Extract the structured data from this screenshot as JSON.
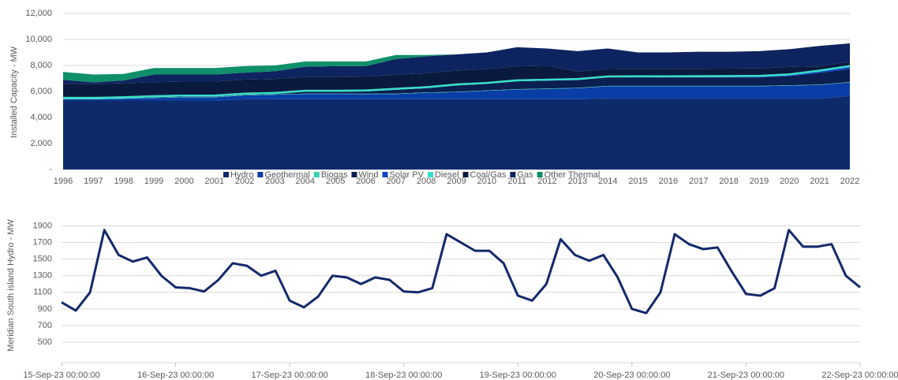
{
  "chart_data": [
    {
      "type": "stacked_area",
      "y_label": "Installed Capacity - MW",
      "x": [
        1996,
        1997,
        1998,
        1999,
        2000,
        2001,
        2002,
        2003,
        2004,
        2005,
        2006,
        2007,
        2008,
        2009,
        2010,
        2011,
        2012,
        2013,
        2014,
        2015,
        2016,
        2017,
        2018,
        2019,
        2020,
        2021,
        2022
      ],
      "xlim": [
        1996,
        2022
      ],
      "ylim": [
        0,
        12000
      ],
      "yticks": [
        {
          "value": 0,
          "label": "-"
        },
        {
          "value": 2000,
          "label": "2,000"
        },
        {
          "value": 4000,
          "label": "4,000"
        },
        {
          "value": 6000,
          "label": "6,000"
        },
        {
          "value": 8000,
          "label": "8,000"
        },
        {
          "value": 10000,
          "label": "10,000"
        },
        {
          "value": 12000,
          "label": "12,000"
        }
      ],
      "grid": true,
      "legend": "bottom",
      "series": [
        {
          "name": "Hydro",
          "color": "#0d2a6b",
          "values": [
            5300,
            5300,
            5300,
            5300,
            5300,
            5300,
            5400,
            5400,
            5400,
            5400,
            5400,
            5400,
            5400,
            5400,
            5400,
            5400,
            5400,
            5400,
            5450,
            5450,
            5450,
            5450,
            5450,
            5450,
            5450,
            5450,
            5650
          ]
        },
        {
          "name": "Geothermal",
          "color": "#0a3ea6",
          "values": [
            100,
            100,
            150,
            200,
            250,
            250,
            300,
            350,
            400,
            400,
            400,
            400,
            500,
            550,
            650,
            750,
            800,
            850,
            950,
            950,
            950,
            950,
            950,
            950,
            1000,
            1050,
            1050
          ]
        },
        {
          "name": "Biogas",
          "color": "#39d3b0",
          "values": [
            30,
            30,
            30,
            30,
            30,
            30,
            30,
            30,
            30,
            30,
            30,
            30,
            30,
            30,
            30,
            30,
            30,
            30,
            30,
            30,
            30,
            30,
            30,
            30,
            30,
            30,
            30
          ]
        },
        {
          "name": "Wind",
          "color": "#0b1f50",
          "values": [
            0,
            0,
            0,
            30,
            30,
            30,
            30,
            30,
            150,
            150,
            170,
            300,
            320,
            480,
            500,
            600,
            600,
            600,
            650,
            650,
            650,
            650,
            650,
            650,
            700,
            900,
            1000
          ]
        },
        {
          "name": "Solar PV",
          "color": "#0b44c4",
          "values": [
            0,
            0,
            0,
            0,
            0,
            0,
            0,
            0,
            0,
            0,
            0,
            0,
            0,
            0,
            0,
            0,
            0,
            0,
            0,
            10,
            15,
            20,
            30,
            40,
            60,
            100,
            150
          ]
        },
        {
          "name": "Diesel",
          "color": "#32e0c8",
          "values": [
            150,
            150,
            150,
            150,
            150,
            150,
            150,
            150,
            150,
            150,
            150,
            150,
            150,
            150,
            150,
            150,
            150,
            150,
            150,
            150,
            150,
            150,
            150,
            150,
            150,
            150,
            150
          ]
        },
        {
          "name": "Coal/Gas",
          "color": "#0a1a3e",
          "values": [
            1000,
            1000,
            1000,
            1000,
            1000,
            1000,
            1000,
            1000,
            1000,
            1000,
            1000,
            1000,
            1000,
            1000,
            1000,
            1000,
            1000,
            500,
            500,
            500,
            500,
            500,
            500,
            500,
            500,
            250,
            250
          ]
        },
        {
          "name": "Gas",
          "color": "#0e2460",
          "values": [
            320,
            120,
            220,
            590,
            540,
            540,
            540,
            590,
            770,
            820,
            800,
            1220,
            1300,
            1240,
            1270,
            1470,
            1320,
            1570,
            1570,
            1260,
            1255,
            1300,
            1290,
            1330,
            1360,
            1570,
            1420
          ]
        },
        {
          "name": "Other Thermal",
          "color": "#0f8f6a",
          "values": [
            600,
            600,
            500,
            500,
            500,
            500,
            500,
            450,
            400,
            350,
            350,
            300,
            100,
            0,
            0,
            0,
            0,
            0,
            0,
            0,
            0,
            0,
            0,
            0,
            0,
            0,
            0
          ]
        }
      ]
    },
    {
      "type": "line",
      "y_label": "Meridian South island Hydro - MW",
      "x": [
        "15-Sep-23 00:00:00",
        "15-Sep-23 03:00:00",
        "15-Sep-23 06:00:00",
        "15-Sep-23 09:00:00",
        "15-Sep-23 12:00:00",
        "15-Sep-23 15:00:00",
        "15-Sep-23 18:00:00",
        "15-Sep-23 21:00:00",
        "16-Sep-23 00:00:00",
        "16-Sep-23 03:00:00",
        "16-Sep-23 06:00:00",
        "16-Sep-23 09:00:00",
        "16-Sep-23 12:00:00",
        "16-Sep-23 15:00:00",
        "16-Sep-23 18:00:00",
        "16-Sep-23 21:00:00",
        "17-Sep-23 00:00:00",
        "17-Sep-23 03:00:00",
        "17-Sep-23 06:00:00",
        "17-Sep-23 09:00:00",
        "17-Sep-23 12:00:00",
        "17-Sep-23 15:00:00",
        "17-Sep-23 18:00:00",
        "17-Sep-23 21:00:00",
        "18-Sep-23 00:00:00",
        "18-Sep-23 03:00:00",
        "18-Sep-23 06:00:00",
        "18-Sep-23 09:00:00",
        "18-Sep-23 12:00:00",
        "18-Sep-23 15:00:00",
        "18-Sep-23 18:00:00",
        "18-Sep-23 21:00:00",
        "19-Sep-23 00:00:00",
        "19-Sep-23 03:00:00",
        "19-Sep-23 06:00:00",
        "19-Sep-23 09:00:00",
        "19-Sep-23 12:00:00",
        "19-Sep-23 15:00:00",
        "19-Sep-23 18:00:00",
        "19-Sep-23 21:00:00",
        "20-Sep-23 00:00:00",
        "20-Sep-23 03:00:00",
        "20-Sep-23 06:00:00",
        "20-Sep-23 09:00:00",
        "20-Sep-23 12:00:00",
        "20-Sep-23 15:00:00",
        "20-Sep-23 18:00:00",
        "20-Sep-23 21:00:00",
        "21-Sep-23 00:00:00",
        "21-Sep-23 03:00:00",
        "21-Sep-23 06:00:00",
        "21-Sep-23 09:00:00",
        "21-Sep-23 12:00:00",
        "21-Sep-23 15:00:00",
        "21-Sep-23 18:00:00",
        "21-Sep-23 21:00:00",
        "22-Sep-23 00:00:00"
      ],
      "xlim": [
        "15-Sep-23 00:00:00",
        "22-Sep-23 00:00:00"
      ],
      "xticks": [
        "15-Sep-23 00:00:00",
        "16-Sep-23 00:00:00",
        "17-Sep-23 00:00:00",
        "18-Sep-23 00:00:00",
        "19-Sep-23 00:00:00",
        "20-Sep-23 00:00:00",
        "21-Sep-23 00:00:00",
        "22-Sep-23 00:00:00"
      ],
      "ylim": [
        500,
        2000
      ],
      "yticks": [
        500,
        700,
        900,
        1100,
        1300,
        1500,
        1700,
        1900
      ],
      "grid": true,
      "color": "#13296b",
      "values": [
        980,
        880,
        1100,
        1850,
        1550,
        1470,
        1520,
        1300,
        1160,
        1150,
        1110,
        1250,
        1450,
        1420,
        1300,
        1360,
        1000,
        920,
        1050,
        1300,
        1280,
        1200,
        1280,
        1250,
        1110,
        1100,
        1150,
        1800,
        1700,
        1600,
        1600,
        1450,
        1060,
        1000,
        1200,
        1740,
        1550,
        1480,
        1550,
        1280,
        900,
        850,
        1100,
        1800,
        1680,
        1620,
        1640,
        1350,
        1080,
        1060,
        1150,
        1850,
        1650,
        1650,
        1680,
        1300,
        1160
      ]
    }
  ]
}
